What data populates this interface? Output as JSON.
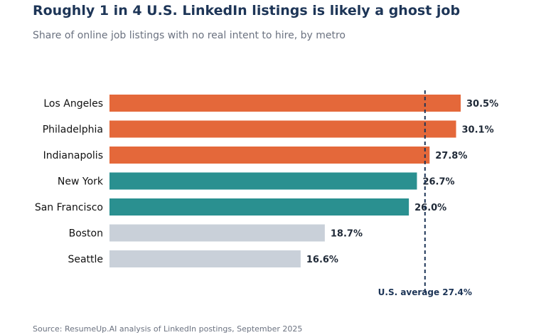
{
  "chart_data": {
    "type": "bar",
    "orientation": "horizontal",
    "title": "Roughly 1 in 4 U.S. LinkedIn listings is likely a ghost job",
    "subtitle": "Share of online job listings with no real intent to hire, by metro",
    "source": "Source: ResumeUp.AI analysis of LinkedIn postings, September 2025",
    "categories": [
      "Los Angeles",
      "Philadelphia",
      "Indianapolis",
      "New York",
      "San Francisco",
      "Boston",
      "Seattle"
    ],
    "values": [
      30.5,
      30.1,
      27.8,
      26.7,
      26.0,
      18.7,
      16.6
    ],
    "value_labels": [
      "30.5%",
      "30.1%",
      "27.8%",
      "26.7%",
      "26.0%",
      "18.7%",
      "16.6%"
    ],
    "bar_colors": [
      "#e4683a",
      "#e4683a",
      "#e4683a",
      "#2a9090",
      "#2a9090",
      "#c9d0d9",
      "#c9d0d9"
    ],
    "xlim": [
      0,
      30.5
    ],
    "reference_line": {
      "value": 27.4,
      "label": "U.S. average 27.4%",
      "color": "#1d3557",
      "style": "dashed"
    },
    "grid": false,
    "xaxis_visible": false
  }
}
